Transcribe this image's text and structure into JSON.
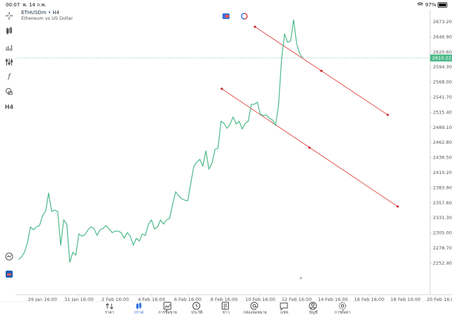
{
  "status_bar": {
    "time": "00:07",
    "date": "พ. 14 ก.พ.",
    "battery": "97%"
  },
  "toolbar": {
    "timeframe": "H4"
  },
  "chart_data": {
    "type": "line",
    "title": "ETHUSDm • H4",
    "subtitle": "Ethereum vs US Dollar",
    "categories": [
      null,
      null,
      null,
      null,
      null,
      null,
      null,
      null,
      "29 Jan 16:00",
      null,
      null,
      null,
      null,
      null,
      null,
      null,
      null,
      null,
      null,
      null,
      "31 Jan 16:00",
      null,
      null,
      null,
      null,
      null,
      null,
      null,
      null,
      null,
      null,
      null,
      "2 Feb 16:00",
      null,
      null,
      null,
      null,
      null,
      null,
      null,
      null,
      null,
      null,
      null,
      "4 Feb 16:00",
      null,
      null,
      null,
      null,
      null,
      null,
      null,
      null,
      null,
      null,
      null,
      "6 Feb 16:00",
      null,
      null,
      null,
      null,
      null,
      null,
      null,
      null,
      null,
      null,
      null,
      "8 Feb 16:00",
      null,
      null,
      null,
      null,
      null,
      null,
      null,
      null,
      null,
      null,
      null,
      "10 Feb 16:00",
      null,
      null,
      null,
      null,
      null,
      null,
      null,
      null,
      null,
      null,
      null,
      "12 Feb 16:00",
      null,
      null,
      null,
      null,
      null,
      null,
      null,
      null,
      null,
      null,
      null,
      "14 Feb 16:00",
      null,
      null,
      null,
      null,
      null,
      null,
      null,
      null,
      null,
      null,
      null,
      "16 Feb 16:00",
      null,
      null,
      null,
      null,
      null,
      null,
      null,
      null,
      null,
      null,
      null,
      "18 Feb 16:00",
      null,
      null,
      null,
      null,
      null,
      null,
      null,
      null,
      null,
      null,
      null,
      "20 Feb 16:00"
    ],
    "values": [
      2259.0,
      2262.7,
      2271.3,
      2287.3,
      2315.6,
      2310.6,
      2315.6,
      2318.0,
      2335.2,
      2342.6,
      2374.6,
      2342.6,
      2345.1,
      2342.6,
      2283.6,
      2327.9,
      2320.5,
      2254.1,
      2271.3,
      2266.4,
      2303.3,
      2299.6,
      2302.0,
      2310.6,
      2315.6,
      2313.1,
      2300.8,
      2310.6,
      2313.1,
      2318.0,
      2311.9,
      2305.7,
      2308.2,
      2308.2,
      2305.7,
      2295.9,
      2305.7,
      2299.6,
      2283.6,
      2295.9,
      2291.0,
      2303.3,
      2300.8,
      2320.5,
      2327.9,
      2311.9,
      2315.6,
      2327.9,
      2320.5,
      2327.9,
      2330.3,
      2354.9,
      2377.0,
      2369.6,
      2364.7,
      2362.3,
      2361.0,
      2391.8,
      2421.3,
      2428.6,
      2433.5,
      2421.3,
      2448.3,
      2416.3,
      2426.2,
      2450.8,
      2453.2,
      2499.9,
      2496.2,
      2487.6,
      2495.0,
      2507.3,
      2495.0,
      2499.9,
      2486.4,
      2496.2,
      2499.9,
      2529.4,
      2529.4,
      2533.1,
      2512.2,
      2509.7,
      2511.0,
      2504.8,
      2502.4,
      2492.5,
      2526.9,
      2606.8,
      2652.3,
      2637.6,
      2640.0,
      2676.9,
      2635.1,
      2617.9,
      2610.22,
      null,
      null,
      null,
      null,
      null,
      null,
      null,
      null,
      null,
      null,
      null,
      null,
      null,
      null,
      null,
      null,
      null,
      null,
      null,
      null,
      null,
      null,
      null,
      null,
      null,
      null,
      null,
      null,
      null,
      null,
      null,
      null,
      null,
      null,
      null,
      null,
      null,
      null,
      null,
      null,
      null,
      null,
      null,
      null,
      null,
      null
    ],
    "color": "#4cb98a",
    "last_price": 2610.22,
    "ylim": [
      2222.2,
      2684.3
    ],
    "yticks": [
      {
        "value": 2673.2,
        "label": "2673.20"
      },
      {
        "value": 2646.9,
        "label": "2646.90"
      },
      {
        "value": 2620.6,
        "label": "2620.60"
      },
      {
        "value": 2594.3,
        "label": "2594.30"
      },
      {
        "value": 2568.0,
        "label": "2568.00"
      },
      {
        "value": 2541.7,
        "label": "2541.70"
      },
      {
        "value": 2515.4,
        "label": "2515.40"
      },
      {
        "value": 2489.1,
        "label": "2489.10"
      },
      {
        "value": 2462.8,
        "label": "2462.80"
      },
      {
        "value": 2436.5,
        "label": "2436.50"
      },
      {
        "value": 2410.2,
        "label": "2410.20"
      },
      {
        "value": 2383.9,
        "label": "2383.90"
      },
      {
        "value": 2357.6,
        "label": "2357.60"
      },
      {
        "value": 2331.3,
        "label": "2331.30"
      },
      {
        "value": 2305.0,
        "label": "2305.00"
      },
      {
        "value": 2278.7,
        "label": "2278.70"
      },
      {
        "value": 2252.4,
        "label": "2252.40"
      }
    ],
    "grid": false
  },
  "nav": {
    "items": [
      "ราคา",
      "กราฟ",
      "การซื้อขาย",
      "ประวัติ",
      "ข่าว",
      "กล่องจดหมาย",
      "แชท",
      "บัญชี",
      "การตั้งค่า"
    ],
    "active": 1
  }
}
